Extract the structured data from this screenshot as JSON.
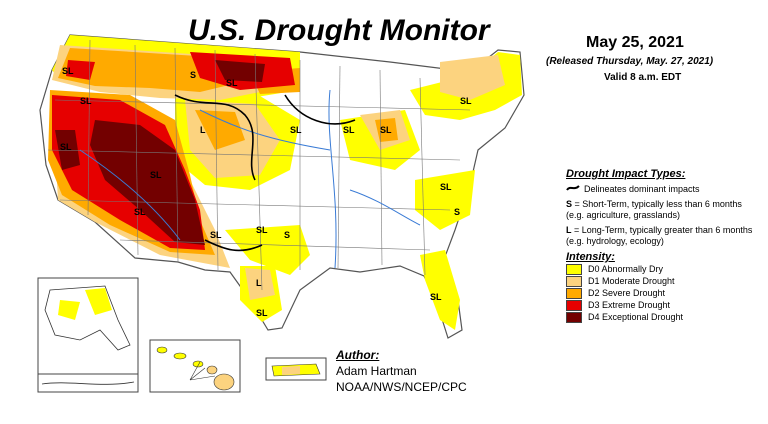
{
  "header": {
    "title": "U.S. Drought Monitor",
    "date": "May 25, 2021",
    "released": "(Released Thursday, May. 27, 2021)",
    "valid": "Valid 8 a.m. EDT"
  },
  "legend": {
    "impact_heading": "Drought Impact Types:",
    "dominant": "Delineates dominant impacts",
    "short_term_code": "S",
    "short_term_text": "= Short-Term, typically less than 6 months (e.g. agriculture, grasslands)",
    "long_term_code": "L",
    "long_term_text": "= Long-Term, typically greater than 6 months (e.g. hydrology, ecology)",
    "intensity_heading": "Intensity:",
    "levels": [
      {
        "label": "D0 Abnormally Dry",
        "color": "#FFFF00"
      },
      {
        "label": "D1 Moderate Drought",
        "color": "#FCD37F"
      },
      {
        "label": "D2 Severe Drought",
        "color": "#FFAA00"
      },
      {
        "label": "D3 Extreme Drought",
        "color": "#E60000"
      },
      {
        "label": "D4 Exceptional Drought",
        "color": "#730000"
      }
    ]
  },
  "author": {
    "heading": "Author:",
    "name": "Adam Hartman",
    "org": "NOAA/NWS/NCEP/CPC"
  },
  "map_labels": [
    "SL",
    "SL",
    "S",
    "SL",
    "L",
    "SL",
    "SL",
    "SL",
    "SL",
    "SL",
    "SL",
    "SL",
    "SL",
    "SL",
    "S",
    "SL",
    "SL",
    "S",
    "L",
    "SL",
    "S"
  ]
}
